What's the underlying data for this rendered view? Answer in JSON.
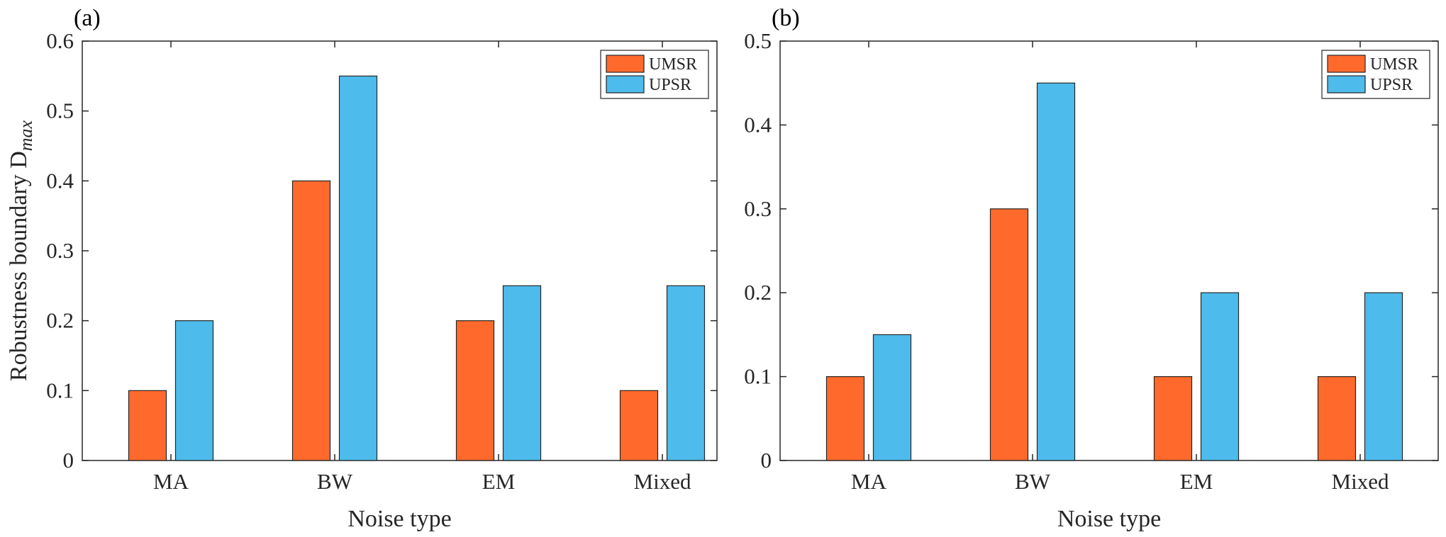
{
  "chart_data": [
    {
      "type": "bar",
      "panel_label": "(a)",
      "categories": [
        "MA",
        "BW",
        "EM",
        "Mixed"
      ],
      "series": [
        {
          "name": "UMSR",
          "color": "#ff6a2c",
          "values": [
            0.1,
            0.4,
            0.2,
            0.1
          ]
        },
        {
          "name": "UPSR",
          "color": "#4dbbeb",
          "values": [
            0.2,
            0.55,
            0.25,
            0.25
          ]
        }
      ],
      "xlabel": "Noise type",
      "ylabel": "Robustness boundary D",
      "ylabel_subscript": "max",
      "ylim": [
        0,
        0.6
      ],
      "yticks": [
        "0",
        "0.1",
        "0.2",
        "0.3",
        "0.4",
        "0.5",
        "0.6"
      ],
      "legend": "top-right"
    },
    {
      "type": "bar",
      "panel_label": "(b)",
      "categories": [
        "MA",
        "BW",
        "EM",
        "Mixed"
      ],
      "series": [
        {
          "name": "UMSR",
          "color": "#ff6a2c",
          "values": [
            0.1,
            0.3,
            0.1,
            0.1
          ]
        },
        {
          "name": "UPSR",
          "color": "#4dbbeb",
          "values": [
            0.15,
            0.45,
            0.2,
            0.2
          ]
        }
      ],
      "xlabel": "Noise type",
      "ylabel": "",
      "ylim": [
        0,
        0.5
      ],
      "yticks": [
        "0",
        "0.1",
        "0.2",
        "0.3",
        "0.4",
        "0.5"
      ],
      "legend": "top-right"
    }
  ]
}
